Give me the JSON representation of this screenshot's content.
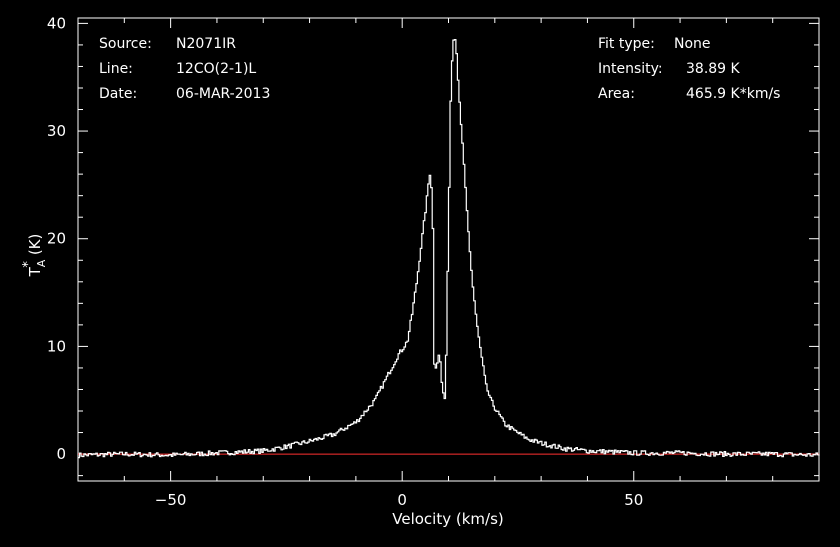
{
  "header_left": {
    "source_label": "Source:",
    "source_value": "N2071IR",
    "line_label": "Line:",
    "line_value": "12CO(2-1)L",
    "date_label": "Date:",
    "date_value": "06-MAR-2013"
  },
  "header_right": {
    "fit_label": "Fit type:",
    "fit_value": "None",
    "intensity_label": "Intensity:",
    "intensity_value": "38.89 K",
    "area_label": "Area:",
    "area_value": "465.9 K*km/s"
  },
  "colors": {
    "background": "#000000",
    "axes": "#ffffff",
    "spectrum": "#ffffff",
    "baseline": "#ff3030"
  },
  "chart_data": {
    "type": "line",
    "xlabel": "Velocity (km/s)",
    "ylabel": "T*A (K)",
    "xlim": [
      -70,
      90
    ],
    "ylim": [
      -2.5,
      40.5
    ],
    "x_ticks": [
      -50,
      0,
      50
    ],
    "y_ticks": [
      0,
      10,
      20,
      30,
      40
    ],
    "x_tick_labels": [
      "−50",
      "0",
      "50"
    ],
    "y_tick_labels": [
      "0",
      "10",
      "20",
      "30",
      "40"
    ],
    "baseline": 0,
    "series": [
      {
        "x": [
          -70,
          -60,
          -50,
          -40,
          -30,
          -25,
          -20,
          -15,
          -10,
          -6,
          -3,
          -1,
          0,
          1,
          2,
          3,
          4,
          5,
          5.8,
          6.4,
          6.8,
          7.3,
          7.6,
          8,
          8.6,
          9.2,
          9.8,
          10.4,
          11,
          11.4,
          12,
          13,
          14,
          15,
          16,
          17,
          18,
          19,
          20,
          22,
          24,
          27,
          30,
          35,
          40,
          50,
          60,
          70,
          80,
          90
        ],
        "y": [
          -0.1,
          0,
          -0.1,
          0.1,
          0.3,
          0.7,
          1.2,
          1.8,
          3,
          5,
          7.5,
          9.2,
          9.8,
          10.5,
          13,
          16,
          19.5,
          23,
          26.2,
          24,
          8.5,
          8.0,
          9.2,
          9.0,
          5.5,
          5.3,
          20,
          35,
          38.89,
          38.5,
          34,
          28,
          21.5,
          16,
          12,
          9,
          6.3,
          5,
          4.2,
          2.8,
          2.2,
          1.4,
          1.0,
          0.5,
          0.3,
          0.1,
          0.1,
          0.0,
          0.0,
          -0.1
        ]
      }
    ]
  }
}
